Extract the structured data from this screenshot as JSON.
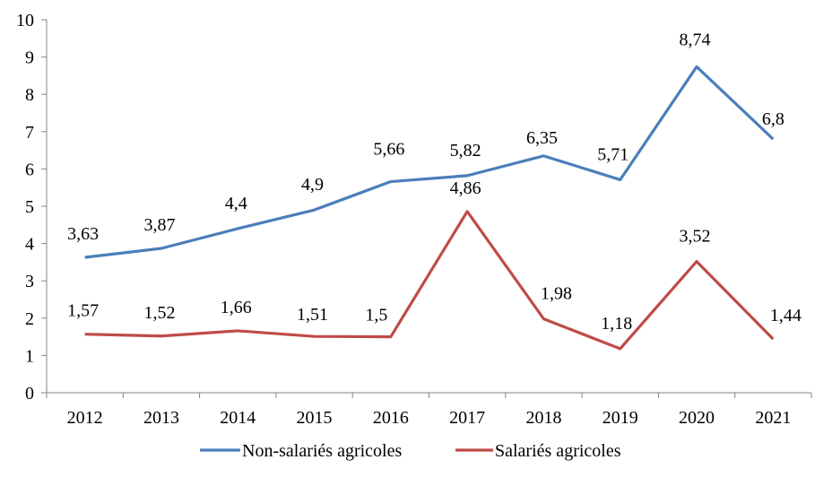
{
  "chart_data": {
    "type": "line",
    "title": "",
    "xlabel": "",
    "ylabel": "",
    "ylim": [
      0,
      10
    ],
    "yticks": [
      "0",
      "1",
      "2",
      "3",
      "4",
      "5",
      "6",
      "7",
      "8",
      "9",
      "10"
    ],
    "ytick_values": [
      0,
      1,
      2,
      3,
      4,
      5,
      6,
      7,
      8,
      9,
      10
    ],
    "categories": [
      "2012",
      "2013",
      "2014",
      "2015",
      "2016",
      "2017",
      "2018",
      "2019",
      "2020",
      "2021"
    ],
    "grid": false,
    "legend_position": "bottom",
    "series": [
      {
        "name": "Non-salariés agricoles",
        "color": "#4A7EBB",
        "values": [
          3.63,
          3.87,
          4.4,
          4.9,
          5.66,
          5.82,
          6.35,
          5.71,
          8.74,
          6.8
        ],
        "labels": [
          "3,63",
          "3,87",
          "4,4",
          "4,9",
          "5,66",
          "5,82",
          "6,35",
          "5,71",
          "8,74",
          "6,8"
        ]
      },
      {
        "name": "Salariés agricoles",
        "color": "#BE4B48",
        "values": [
          1.57,
          1.52,
          1.66,
          1.51,
          1.5,
          4.86,
          1.98,
          1.18,
          3.52,
          1.44
        ],
        "labels": [
          "1,57",
          "1,52",
          "1,66",
          "1,51",
          "1,5",
          "4,86",
          "1,98",
          "1,18",
          "3,52",
          "1,44"
        ]
      }
    ]
  }
}
